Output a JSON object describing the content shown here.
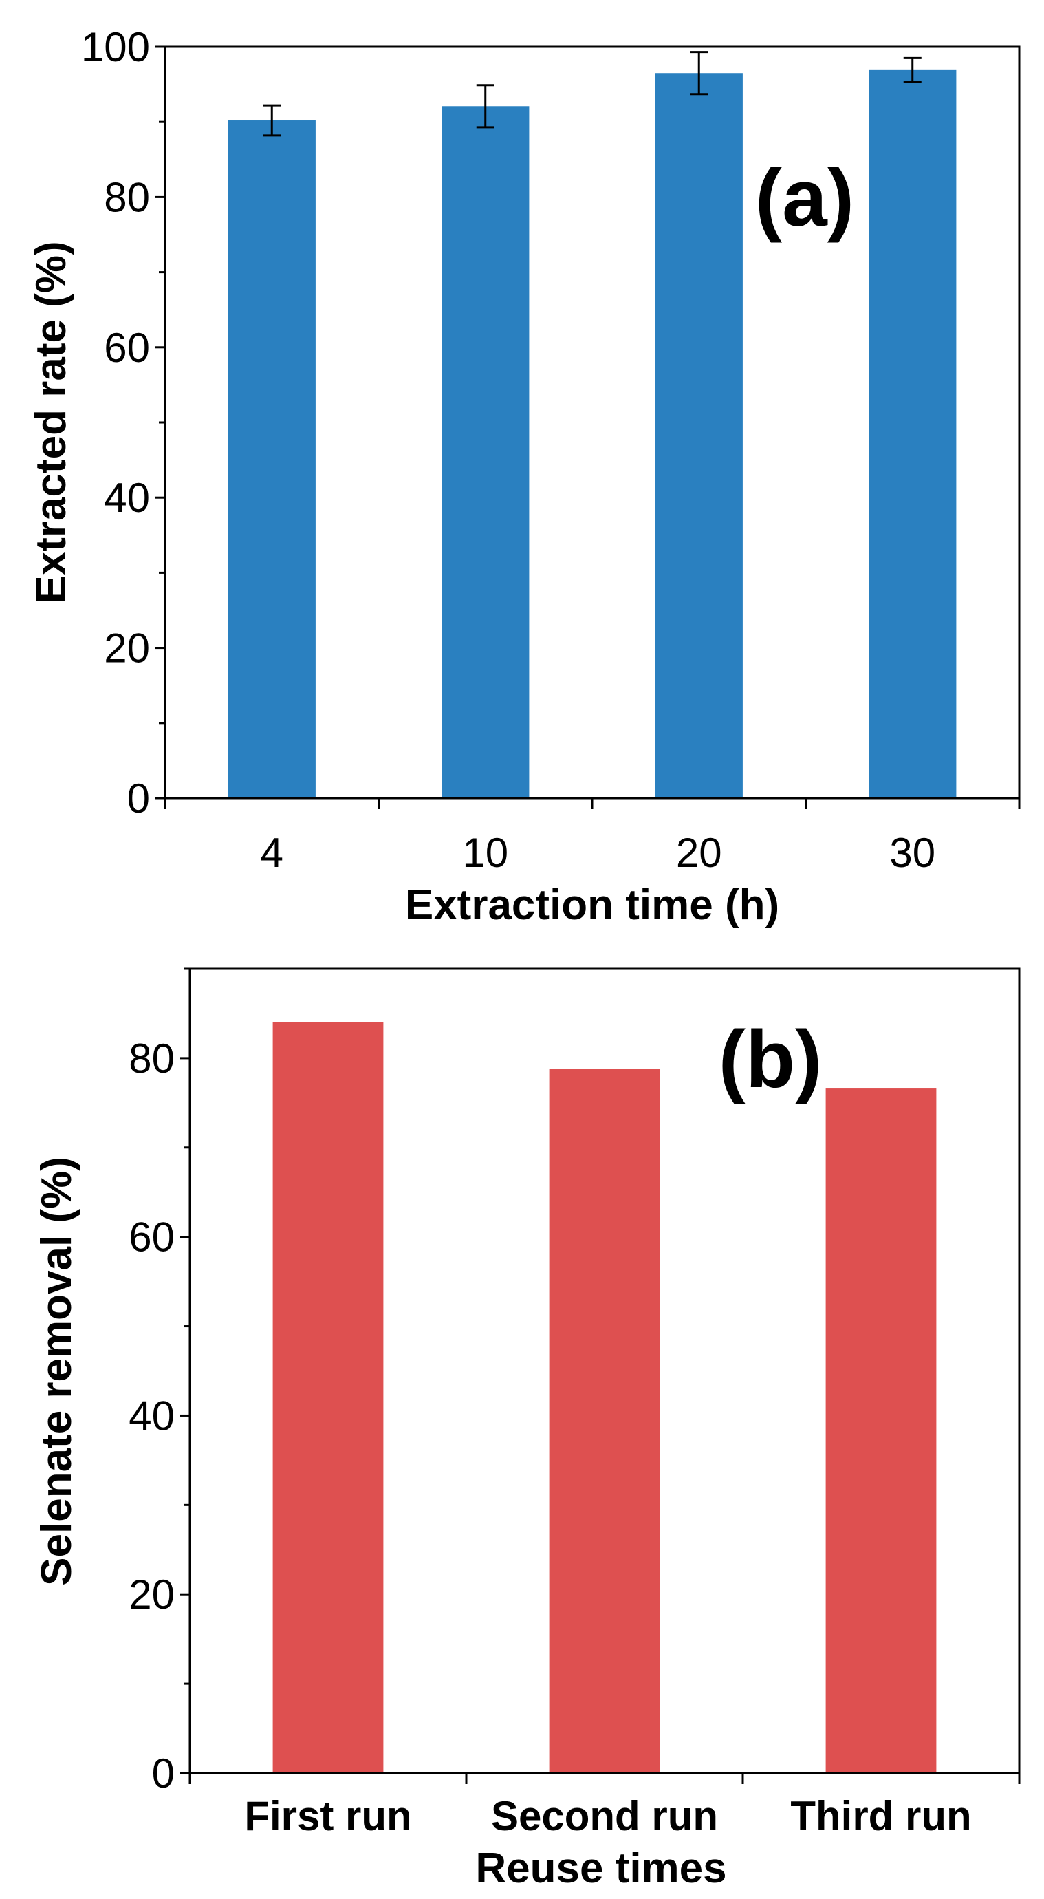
{
  "chart_data": [
    {
      "type": "bar",
      "panel_label": "(a)",
      "title": "",
      "categories": [
        "4",
        "10",
        "20",
        "30"
      ],
      "values": [
        90.2,
        92.1,
        96.5,
        96.9
      ],
      "errors": [
        2.0,
        2.8,
        2.8,
        1.6
      ],
      "xlabel": "Extraction time (h)",
      "ylabel": "Extracted rate (%)",
      "ylim": [
        0,
        100
      ],
      "yticks": [
        0,
        20,
        40,
        60,
        80,
        100
      ],
      "ytick_labels": [
        "0",
        "20",
        "40",
        "60",
        "80",
        "100"
      ],
      "minor_ytick_step": 10,
      "color": "#2a80c0",
      "grid": false,
      "legend": "none"
    },
    {
      "type": "bar",
      "panel_label": "(b)",
      "title": "",
      "categories": [
        "First run",
        "Second run",
        "Third run"
      ],
      "values": [
        84.0,
        78.8,
        76.6
      ],
      "xlabel": "Reuse times",
      "ylabel": "Selenate removal (%)",
      "ylim": [
        0,
        90
      ],
      "yticks": [
        0,
        20,
        40,
        60,
        80
      ],
      "ytick_labels": [
        "0",
        "20",
        "40",
        "60",
        "80"
      ],
      "minor_ytick_step": 10,
      "color": "#de5050",
      "grid": false,
      "legend": "none"
    }
  ]
}
